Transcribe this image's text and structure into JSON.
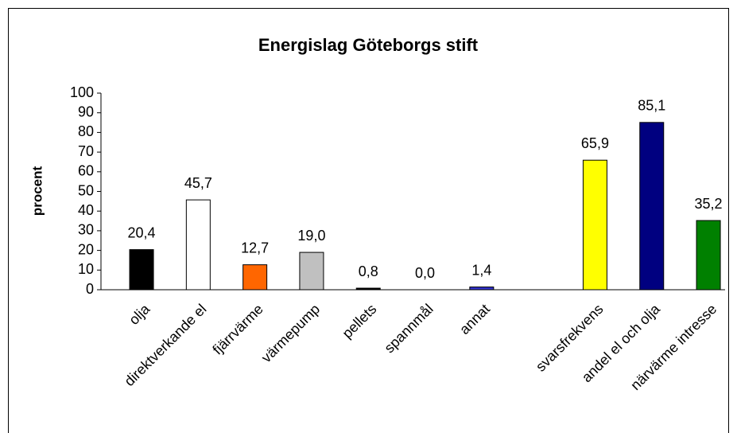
{
  "chart_data": {
    "type": "bar",
    "title": "Energislag Göteborgs stift",
    "y_label": "procent",
    "categories": [
      "olja",
      "direktverkande el",
      "fjärrvärme",
      "värmepump",
      "pellets",
      "spannmål",
      "annat",
      null,
      "svarsfrekvens",
      "andel el och olja",
      "närvärme intresse"
    ],
    "values": [
      20.4,
      45.7,
      12.7,
      19.0,
      0.8,
      0.0,
      1.4,
      null,
      65.9,
      85.1,
      35.2
    ],
    "value_labels": [
      "20,4",
      "45,7",
      "12,7",
      "19,0",
      "0,8",
      "0,0",
      "1,4",
      null,
      "65,9",
      "85,1",
      "35,2"
    ],
    "colors": [
      "#000000",
      "#ffffff",
      "#ff6600",
      "#c0c0c0",
      "#000000",
      "#808080",
      "#3333cc",
      null,
      "#ffff00",
      "#000080",
      "#008000"
    ],
    "ylim": [
      0,
      100
    ],
    "yticks": [
      0,
      10,
      20,
      30,
      40,
      50,
      60,
      70,
      80,
      90,
      100
    ],
    "grid": false
  }
}
